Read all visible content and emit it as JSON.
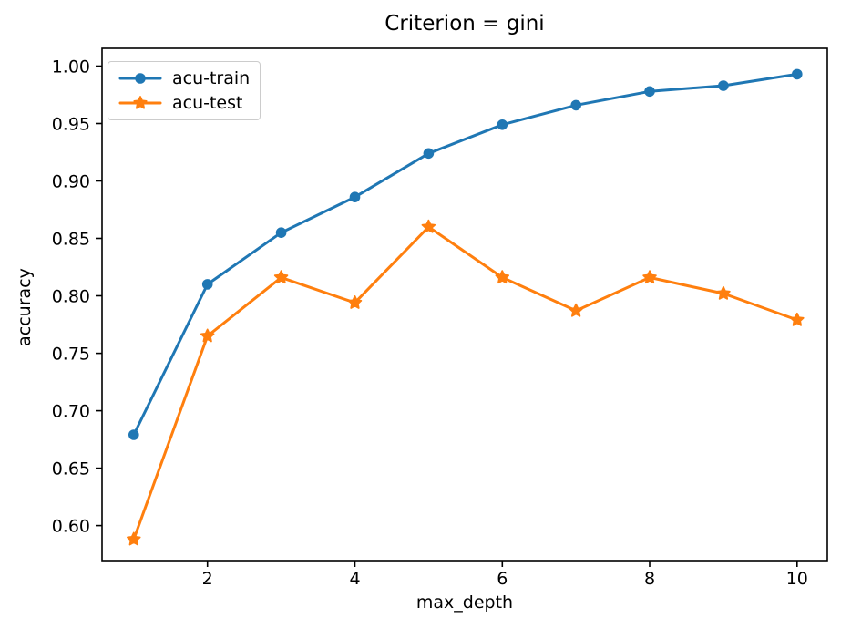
{
  "chart_data": {
    "type": "line",
    "title": "Criterion = gini",
    "xlabel": "max_depth",
    "ylabel": "accuracy",
    "x": [
      1,
      2,
      3,
      4,
      5,
      6,
      7,
      8,
      9,
      10
    ],
    "series": [
      {
        "name": "acu-train",
        "color": "#1f77b4",
        "marker": "circle",
        "values": [
          0.679,
          0.81,
          0.855,
          0.886,
          0.924,
          0.949,
          0.966,
          0.978,
          0.983,
          0.993
        ]
      },
      {
        "name": "acu-test",
        "color": "#ff7f0e",
        "marker": "star",
        "values": [
          0.588,
          0.765,
          0.816,
          0.794,
          0.86,
          0.816,
          0.787,
          0.816,
          0.802,
          0.779
        ]
      }
    ],
    "xlim": [
      0.57,
      10.41
    ],
    "ylim": [
      0.5695,
      1.0155
    ],
    "xticks": [
      2,
      4,
      6,
      8,
      10
    ],
    "yticks": [
      0.6,
      0.65,
      0.7,
      0.75,
      0.8,
      0.85,
      0.9,
      0.95,
      1.0
    ],
    "legend_position": "upper left",
    "grid": false
  }
}
